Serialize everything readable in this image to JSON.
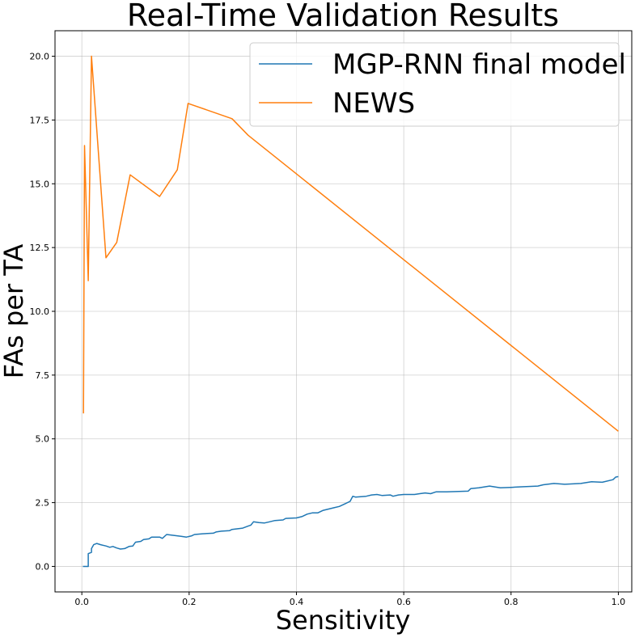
{
  "chart_data": {
    "type": "line",
    "title": "Real-Time Validation Results",
    "xlabel": "Sensitivity",
    "ylabel": "FAs per TA",
    "xlim": [
      -0.05,
      1.025
    ],
    "ylim": [
      -1.0,
      21.0
    ],
    "xticks": [
      0.0,
      0.2,
      0.4,
      0.6,
      0.8,
      1.0
    ],
    "xtick_labels": [
      "0.0",
      "0.2",
      "0.4",
      "0.6",
      "0.8",
      "1.0"
    ],
    "yticks": [
      0.0,
      2.5,
      5.0,
      7.5,
      10.0,
      12.5,
      15.0,
      17.5,
      20.0
    ],
    "ytick_labels": [
      "0.0",
      "2.5",
      "5.0",
      "7.5",
      "10.0",
      "12.5",
      "15.0",
      "17.5",
      "20.0"
    ],
    "grid": true,
    "legend": "top-right",
    "series": [
      {
        "name": "MGP-RNN final model",
        "color": "#1f77b4",
        "points": [
          [
            0.002,
            0.0
          ],
          [
            0.012,
            0.0
          ],
          [
            0.012,
            0.5
          ],
          [
            0.018,
            0.55
          ],
          [
            0.018,
            0.7
          ],
          [
            0.022,
            0.85
          ],
          [
            0.028,
            0.9
          ],
          [
            0.035,
            0.85
          ],
          [
            0.045,
            0.8
          ],
          [
            0.052,
            0.75
          ],
          [
            0.058,
            0.78
          ],
          [
            0.065,
            0.72
          ],
          [
            0.072,
            0.68
          ],
          [
            0.08,
            0.7
          ],
          [
            0.088,
            0.78
          ],
          [
            0.095,
            0.8
          ],
          [
            0.1,
            0.95
          ],
          [
            0.11,
            0.98
          ],
          [
            0.115,
            1.05
          ],
          [
            0.125,
            1.08
          ],
          [
            0.13,
            1.15
          ],
          [
            0.145,
            1.15
          ],
          [
            0.15,
            1.1
          ],
          [
            0.158,
            1.25
          ],
          [
            0.17,
            1.22
          ],
          [
            0.185,
            1.18
          ],
          [
            0.195,
            1.15
          ],
          [
            0.205,
            1.2
          ],
          [
            0.21,
            1.25
          ],
          [
            0.225,
            1.28
          ],
          [
            0.245,
            1.3
          ],
          [
            0.25,
            1.35
          ],
          [
            0.26,
            1.38
          ],
          [
            0.275,
            1.4
          ],
          [
            0.28,
            1.45
          ],
          [
            0.3,
            1.5
          ],
          [
            0.31,
            1.58
          ],
          [
            0.315,
            1.62
          ],
          [
            0.32,
            1.75
          ],
          [
            0.33,
            1.72
          ],
          [
            0.34,
            1.7
          ],
          [
            0.35,
            1.75
          ],
          [
            0.36,
            1.8
          ],
          [
            0.375,
            1.82
          ],
          [
            0.38,
            1.88
          ],
          [
            0.4,
            1.9
          ],
          [
            0.41,
            1.95
          ],
          [
            0.42,
            2.05
          ],
          [
            0.43,
            2.1
          ],
          [
            0.44,
            2.1
          ],
          [
            0.45,
            2.2
          ],
          [
            0.46,
            2.25
          ],
          [
            0.47,
            2.3
          ],
          [
            0.48,
            2.35
          ],
          [
            0.49,
            2.45
          ],
          [
            0.5,
            2.55
          ],
          [
            0.505,
            2.75
          ],
          [
            0.51,
            2.72
          ],
          [
            0.53,
            2.75
          ],
          [
            0.54,
            2.8
          ],
          [
            0.55,
            2.82
          ],
          [
            0.56,
            2.78
          ],
          [
            0.575,
            2.8
          ],
          [
            0.58,
            2.75
          ],
          [
            0.59,
            2.8
          ],
          [
            0.6,
            2.82
          ],
          [
            0.62,
            2.82
          ],
          [
            0.63,
            2.85
          ],
          [
            0.64,
            2.88
          ],
          [
            0.65,
            2.85
          ],
          [
            0.66,
            2.92
          ],
          [
            0.68,
            2.92
          ],
          [
            0.72,
            2.95
          ],
          [
            0.725,
            3.05
          ],
          [
            0.74,
            3.08
          ],
          [
            0.76,
            3.15
          ],
          [
            0.78,
            3.08
          ],
          [
            0.8,
            3.1
          ],
          [
            0.82,
            3.12
          ],
          [
            0.85,
            3.15
          ],
          [
            0.86,
            3.2
          ],
          [
            0.88,
            3.25
          ],
          [
            0.9,
            3.22
          ],
          [
            0.93,
            3.25
          ],
          [
            0.95,
            3.32
          ],
          [
            0.97,
            3.3
          ],
          [
            0.99,
            3.4
          ],
          [
            0.995,
            3.5
          ],
          [
            1.0,
            3.52
          ]
        ]
      },
      {
        "name": "NEWS",
        "color": "#ff7f0e",
        "points": [
          [
            0.003,
            6.0
          ],
          [
            0.005,
            16.5
          ],
          [
            0.012,
            11.2
          ],
          [
            0.018,
            20.0
          ],
          [
            0.045,
            12.1
          ],
          [
            0.065,
            12.7
          ],
          [
            0.09,
            15.35
          ],
          [
            0.145,
            14.5
          ],
          [
            0.178,
            15.55
          ],
          [
            0.198,
            18.15
          ],
          [
            0.28,
            17.55
          ],
          [
            0.31,
            16.9
          ],
          [
            1.0,
            5.3
          ]
        ]
      }
    ]
  }
}
